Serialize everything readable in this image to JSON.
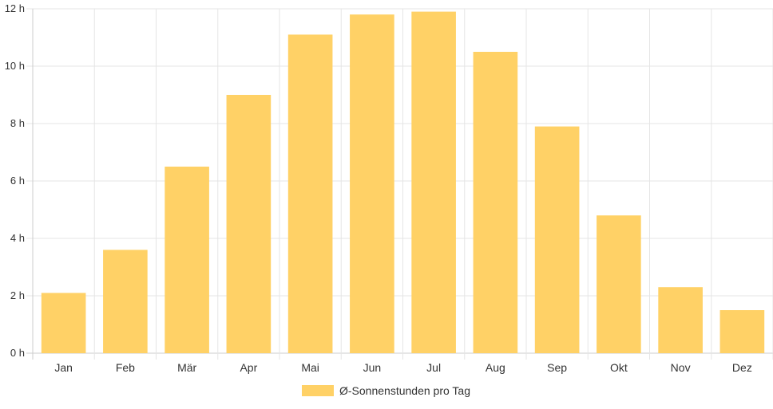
{
  "chart_data": {
    "type": "bar",
    "categories": [
      "Jan",
      "Feb",
      "Mär",
      "Apr",
      "Mai",
      "Jun",
      "Jul",
      "Aug",
      "Sep",
      "Okt",
      "Nov",
      "Dez"
    ],
    "series": [
      {
        "name": "Ø-Sonnenstunden pro Tag",
        "values": [
          2.1,
          3.6,
          6.5,
          9.0,
          11.1,
          11.8,
          11.9,
          10.5,
          7.9,
          4.8,
          2.3,
          1.5
        ]
      }
    ],
    "ylim": [
      0,
      12
    ],
    "yticks": [
      "0 h",
      "2 h",
      "4 h",
      "6 h",
      "8 h",
      "10 h",
      "12 h"
    ],
    "grid": true,
    "legend_position": "bottom",
    "colors": {
      "bar": "#FFD166",
      "grid": "#e5e5e5",
      "axis": "#cccccc",
      "text": "#333333"
    }
  }
}
